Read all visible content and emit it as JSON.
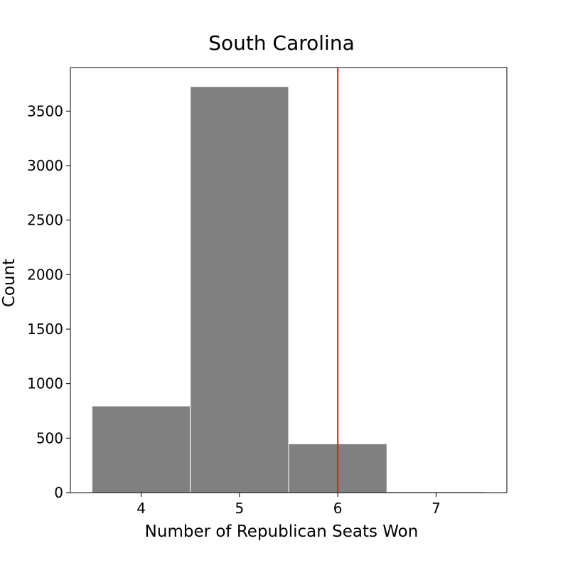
{
  "chart_data": {
    "type": "bar",
    "title": "South Carolina",
    "xlabel": "Number of Republican Seats Won",
    "ylabel": "Count",
    "categories": [
      "4",
      "5",
      "6",
      "7"
    ],
    "x": [
      4,
      5,
      6,
      7
    ],
    "values": [
      795,
      3725,
      448,
      8
    ],
    "bar_width": 1,
    "xlim": [
      3.28,
      7.72
    ],
    "ylim": [
      0,
      3900
    ],
    "yticks": [
      0,
      500,
      1000,
      1500,
      2000,
      2500,
      3000,
      3500
    ],
    "xticks": [
      4,
      5,
      6,
      7
    ],
    "reference_line": {
      "x": 6,
      "color": "#e41a1c"
    },
    "bar_color": "#808080",
    "grid": false,
    "legend": "none"
  }
}
